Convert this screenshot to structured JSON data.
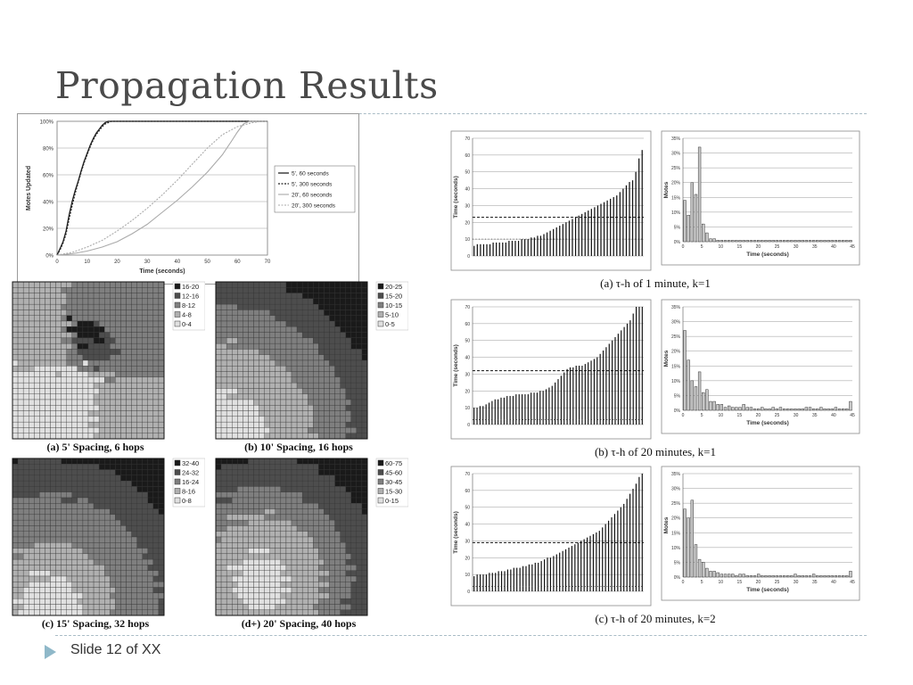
{
  "slide": {
    "title": "Propagation Results",
    "footer": "Slide 12 of XX"
  },
  "chart_data": [
    {
      "type": "line",
      "xlabel": "Time (seconds)",
      "ylabel": "Motes Updated",
      "xlim": [
        0,
        70
      ],
      "ylim": [
        0,
        100
      ],
      "x_ticks": [
        0,
        10,
        20,
        30,
        40,
        50,
        60,
        70
      ],
      "y_ticks": [
        "0%",
        "20%",
        "40%",
        "60%",
        "80%",
        "100%"
      ],
      "grid": "horizontal",
      "legend_position": "right",
      "series": [
        {
          "name": "5', 60 seconds",
          "style": "solid-dark",
          "points": [
            [
              0,
              0
            ],
            [
              1,
              5
            ],
            [
              2,
              10
            ],
            [
              3,
              18
            ],
            [
              4,
              30
            ],
            [
              5,
              40
            ],
            [
              6,
              48
            ],
            [
              7,
              55
            ],
            [
              8,
              63
            ],
            [
              9,
              70
            ],
            [
              10,
              76
            ],
            [
              11,
              82
            ],
            [
              12,
              87
            ],
            [
              13,
              91
            ],
            [
              14,
              94
            ],
            [
              15,
              97
            ],
            [
              16,
              99
            ],
            [
              17,
              100
            ],
            [
              70,
              100
            ]
          ]
        },
        {
          "name": "5', 300 seconds",
          "style": "dotted-dark",
          "points": [
            [
              0,
              0
            ],
            [
              1,
              4
            ],
            [
              2,
              9
            ],
            [
              3,
              16
            ],
            [
              4,
              27
            ],
            [
              5,
              37
            ],
            [
              6,
              46
            ],
            [
              7,
              54
            ],
            [
              8,
              62
            ],
            [
              9,
              69
            ],
            [
              10,
              75
            ],
            [
              11,
              81
            ],
            [
              12,
              86
            ],
            [
              13,
              90
            ],
            [
              14,
              93
            ],
            [
              15,
              96
            ],
            [
              16,
              98
            ],
            [
              17,
              99
            ],
            [
              18,
              100
            ],
            [
              70,
              100
            ]
          ]
        },
        {
          "name": "20', 60 seconds",
          "style": "solid-light",
          "points": [
            [
              0,
              0
            ],
            [
              5,
              1
            ],
            [
              10,
              3
            ],
            [
              15,
              6
            ],
            [
              20,
              10
            ],
            [
              25,
              16
            ],
            [
              30,
              23
            ],
            [
              35,
              32
            ],
            [
              40,
              41
            ],
            [
              45,
              51
            ],
            [
              50,
              62
            ],
            [
              55,
              75
            ],
            [
              58,
              85
            ],
            [
              60,
              92
            ],
            [
              62,
              98
            ],
            [
              64,
              100
            ],
            [
              70,
              100
            ]
          ]
        },
        {
          "name": "20', 300 seconds",
          "style": "dotted-light",
          "points": [
            [
              0,
              0
            ],
            [
              5,
              2
            ],
            [
              10,
              6
            ],
            [
              15,
              11
            ],
            [
              20,
              18
            ],
            [
              25,
              26
            ],
            [
              30,
              35
            ],
            [
              35,
              45
            ],
            [
              40,
              56
            ],
            [
              45,
              68
            ],
            [
              50,
              80
            ],
            [
              55,
              90
            ],
            [
              60,
              96
            ],
            [
              65,
              99
            ],
            [
              68,
              100
            ],
            [
              70,
              100
            ]
          ]
        }
      ]
    },
    {
      "type": "heatmap",
      "caption": "(a) 5' Spacing, 6 hops",
      "legend": [
        "16-20",
        "12-16",
        "8-12",
        "4-8",
        "0-4"
      ]
    },
    {
      "type": "heatmap",
      "caption": "(b) 10' Spacing, 16 hops",
      "legend": [
        "20-25",
        "15-20",
        "10-15",
        "5-10",
        "0-5"
      ]
    },
    {
      "type": "heatmap",
      "caption": "(c) 15' Spacing, 32 hops",
      "legend": [
        "32-40",
        "24-32",
        "16-24",
        "8-16",
        "0-8"
      ]
    },
    {
      "type": "heatmap",
      "caption": "(d+) 20' Spacing, 40 hops",
      "legend": [
        "60-75",
        "45-60",
        "30-45",
        "15-30",
        "0-15"
      ]
    },
    {
      "type": "bar",
      "caption": "(a) τ-h of 1 minute, k=1",
      "ylabel": "Time (seconds)",
      "ylim": [
        0,
        70
      ],
      "y_ticks": [
        0,
        10,
        20,
        30,
        40,
        50,
        60,
        70
      ],
      "dashed_line": 23,
      "dotted_line": 10,
      "values": [
        6,
        7,
        7,
        7,
        7,
        7,
        8,
        8,
        8,
        8,
        8,
        9,
        9,
        9,
        9,
        10,
        10,
        10,
        11,
        11,
        12,
        12,
        13,
        14,
        15,
        16,
        17,
        18,
        19,
        20,
        21,
        22,
        23,
        24,
        25,
        26,
        27,
        28,
        29,
        30,
        31,
        32,
        33,
        34,
        35,
        36,
        38,
        40,
        42,
        44,
        45,
        50,
        58,
        63
      ]
    },
    {
      "type": "bar",
      "caption": "(a) τ-h of 1 minute, k=1",
      "xlabel": "Time (seconds)",
      "ylabel": "Motes",
      "xlim": [
        0,
        45
      ],
      "x_ticks": [
        0,
        5,
        10,
        15,
        20,
        25,
        30,
        35,
        40,
        45
      ],
      "ylim": [
        0,
        35
      ],
      "y_ticks": [
        "0%",
        "5%",
        "10%",
        "15%",
        "20%",
        "25%",
        "30%",
        "35%"
      ],
      "values": [
        14,
        9,
        20,
        16,
        32,
        6,
        3,
        1,
        1,
        0.5,
        0.5,
        0.5,
        0.5,
        0.5,
        0.5,
        0.5,
        0.5,
        0.5,
        0.5,
        0.5,
        0.5,
        0.5,
        0.5,
        0.5,
        0.5,
        0.5,
        0.5,
        0.5,
        0.5,
        0.5,
        0.5,
        0.5,
        0.5,
        0.5,
        0.5,
        0.5,
        0.5,
        0.5,
        0.5,
        0.5,
        0.5,
        0.5,
        0.5,
        0.5,
        0.5,
        0.5
      ]
    },
    {
      "type": "bar",
      "caption": "(b) τ-h of 20 minutes, k=1",
      "ylabel": "Time (seconds)",
      "ylim": [
        0,
        70
      ],
      "y_ticks": [
        0,
        10,
        20,
        30,
        40,
        50,
        60,
        70
      ],
      "dashed_line": 32,
      "dotted_line": 3,
      "values": [
        10,
        10,
        11,
        11,
        12,
        13,
        14,
        15,
        15,
        16,
        16,
        17,
        17,
        17,
        18,
        18,
        18,
        18,
        18,
        19,
        19,
        19,
        20,
        20,
        21,
        22,
        23,
        25,
        27,
        29,
        31,
        33,
        34,
        34,
        35,
        35,
        35,
        36,
        37,
        38,
        39,
        40,
        42,
        44,
        46,
        48,
        50,
        52,
        54,
        56,
        58,
        60,
        62,
        66,
        70,
        70,
        70
      ]
    },
    {
      "type": "bar",
      "caption": "(b) τ-h of 20 minutes, k=1",
      "xlabel": "Time (seconds)",
      "ylabel": "Motes",
      "xlim": [
        0,
        45
      ],
      "x_ticks": [
        0,
        5,
        10,
        15,
        20,
        25,
        30,
        35,
        40,
        45
      ],
      "ylim": [
        0,
        35
      ],
      "y_ticks": [
        "0%",
        "5%",
        "10%",
        "15%",
        "20%",
        "25%",
        "30%",
        "35%"
      ],
      "values": [
        27,
        17,
        10,
        8,
        13,
        6,
        7,
        3,
        3,
        2,
        2,
        1,
        1.5,
        1,
        1,
        1,
        2,
        1,
        1,
        0.5,
        0.5,
        1,
        0.5,
        0.5,
        1,
        0.5,
        1,
        0.5,
        0.5,
        0.5,
        0.5,
        0.5,
        0.5,
        1,
        1,
        0.5,
        0.5,
        1,
        0.5,
        0.5,
        0.5,
        1,
        0.5,
        0.5,
        0.5,
        3
      ]
    },
    {
      "type": "bar",
      "caption": "(c) τ-h of 20 minutes, k=2",
      "ylabel": "Time (seconds)",
      "ylim": [
        0,
        70
      ],
      "y_ticks": [
        0,
        10,
        20,
        30,
        40,
        50,
        60,
        70
      ],
      "dashed_line": 29,
      "dotted_line": 3,
      "values": [
        9,
        10,
        10,
        10,
        10,
        11,
        11,
        11,
        12,
        12,
        12,
        13,
        13,
        14,
        14,
        14,
        15,
        15,
        16,
        16,
        17,
        17,
        18,
        19,
        20,
        20,
        21,
        22,
        23,
        24,
        25,
        26,
        27,
        28,
        29,
        30,
        31,
        32,
        33,
        34,
        35,
        36,
        38,
        40,
        42,
        44,
        46,
        48,
        50,
        52,
        55,
        58,
        61,
        64,
        68,
        70
      ]
    },
    {
      "type": "bar",
      "caption": "(c) τ-h of 20 minutes, k=2",
      "xlabel": "Time (seconds)",
      "ylabel": "Motes",
      "xlim": [
        0,
        45
      ],
      "x_ticks": [
        0,
        5,
        10,
        15,
        20,
        25,
        30,
        35,
        40,
        45
      ],
      "ylim": [
        0,
        35
      ],
      "y_ticks": [
        "0%",
        "5%",
        "10%",
        "15%",
        "20%",
        "25%",
        "30%",
        "35%"
      ],
      "values": [
        23,
        20,
        26,
        11,
        6,
        5,
        3,
        2,
        2,
        1.5,
        1,
        1,
        1,
        1,
        0.5,
        1,
        1,
        0.5,
        0.5,
        0.5,
        1,
        0.5,
        0.5,
        0.5,
        0.5,
        0.5,
        0.5,
        0.5,
        0.5,
        0.5,
        1,
        0.5,
        0.5,
        0.5,
        0.5,
        1,
        0.5,
        0.5,
        0.5,
        0.5,
        0.5,
        0.5,
        0.5,
        0.5,
        0.5,
        2
      ]
    }
  ]
}
